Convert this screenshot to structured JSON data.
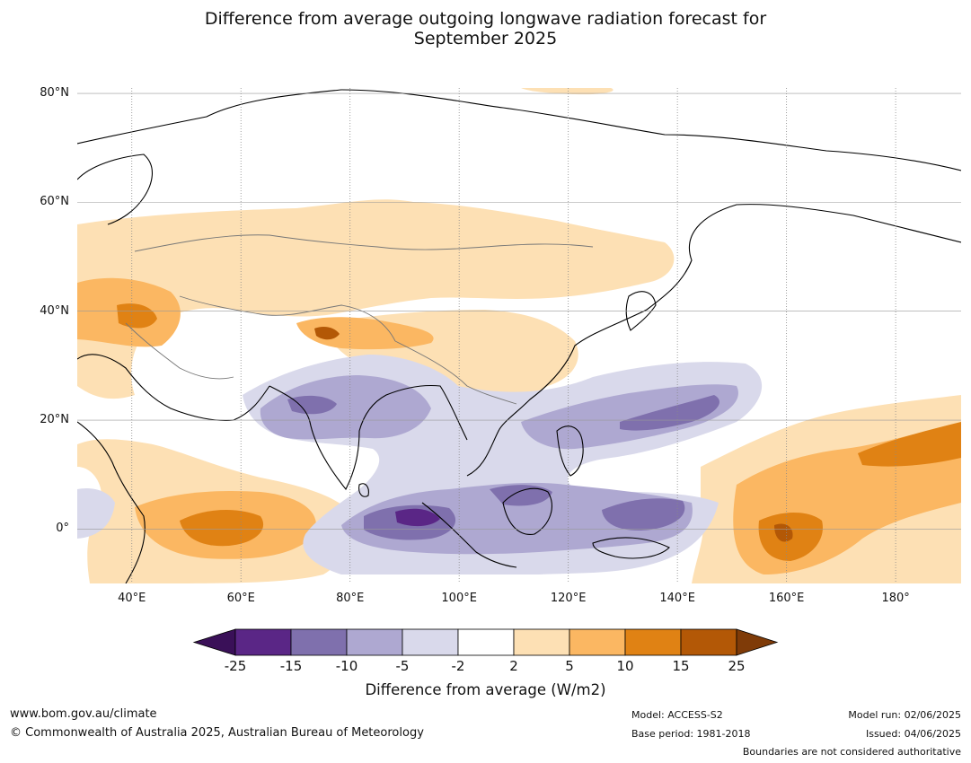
{
  "title": {
    "line1": "Difference from average outgoing longwave radiation forecast for",
    "line2": "September 2025"
  },
  "map": {
    "lat_labels": [
      "80°N",
      "60°N",
      "40°N",
      "20°N",
      "0°"
    ],
    "lon_labels": [
      "40°E",
      "60°E",
      "80°E",
      "100°E",
      "120°E",
      "140°E",
      "160°E",
      "180°"
    ],
    "extent": {
      "lon_min": 30,
      "lon_max": 192,
      "lat_min": -10,
      "lat_max": 81
    }
  },
  "colorbar": {
    "ticks": [
      "-25",
      "-15",
      "-10",
      "-5",
      "-2",
      "2",
      "5",
      "10",
      "15",
      "25"
    ],
    "colors": [
      "#3a1058",
      "#5a2686",
      "#7f70ad",
      "#aea8d1",
      "#d9d9eb",
      "#ffffff",
      "#fde0b4",
      "#fbb762",
      "#e08214",
      "#b35806",
      "#7f3b08"
    ],
    "label": "Difference from average (W/m2)"
  },
  "footer": {
    "website": "www.bom.gov.au/climate",
    "copyright": "© Commonwealth of Australia 2025, Australian Bureau of Meteorology",
    "model": "Model: ACCESS-S2",
    "base_period": "Base period: 1981-2018",
    "model_run": "Model run: 02/06/2025",
    "issued": "Issued: 04/06/2025",
    "disclaimer": "Boundaries are not considered authoritative"
  }
}
